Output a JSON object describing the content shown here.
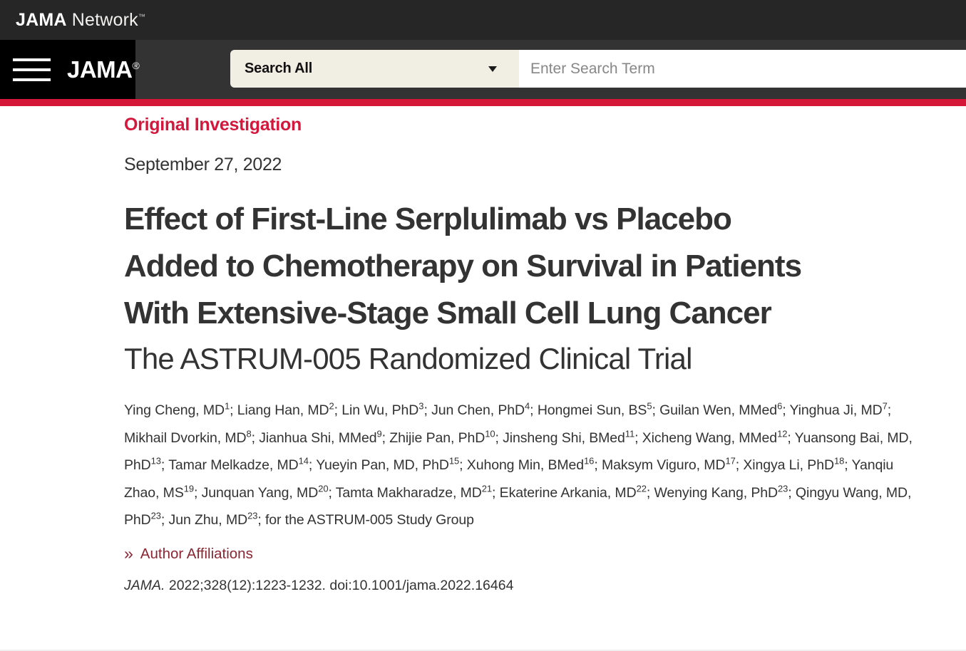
{
  "brand": {
    "name_bold": "JAMA",
    "name_regular": "Network",
    "trademark": "™"
  },
  "nav": {
    "journal_name": "JAMA",
    "registered_mark": "®"
  },
  "search": {
    "scope_selected": "Search All",
    "placeholder": "Enter Search Term"
  },
  "colors": {
    "topbar_bg": "#262626",
    "navbar_bg": "#333333",
    "journal_box_bg": "#000000",
    "scope_bg": "#f1eee3",
    "accent_red": "#d41737",
    "category_red": "#d4173c",
    "affiliations_maroon": "#8c2633",
    "text": "#333333"
  },
  "article": {
    "category": "Original Investigation",
    "date": "September 27, 2022",
    "title_lines": [
      "Effect of First-Line Serplulimab vs Placebo",
      "Added to Chemotherapy on Survival in Patients",
      "With Extensive-Stage Small Cell Lung Cancer"
    ],
    "subtitle": "The ASTRUM-005 Randomized Clinical Trial",
    "authors": [
      {
        "name": "Ying Cheng, MD",
        "sup": "1"
      },
      {
        "name": "Liang Han, MD",
        "sup": "2"
      },
      {
        "name": "Lin Wu, PhD",
        "sup": "3"
      },
      {
        "name": "Jun Chen, PhD",
        "sup": "4"
      },
      {
        "name": "Hongmei Sun, BS",
        "sup": "5"
      },
      {
        "name": "Guilan Wen, MMed",
        "sup": "6"
      },
      {
        "name": "Yinghua Ji, MD",
        "sup": "7"
      },
      {
        "name": "Mikhail Dvorkin, MD",
        "sup": "8"
      },
      {
        "name": "Jianhua Shi, MMed",
        "sup": "9"
      },
      {
        "name": "Zhijie Pan, PhD",
        "sup": "10"
      },
      {
        "name": "Jinsheng Shi, BMed",
        "sup": "11"
      },
      {
        "name": "Xicheng Wang, MMed",
        "sup": "12"
      },
      {
        "name": "Yuansong Bai, MD, PhD",
        "sup": "13"
      },
      {
        "name": "Tamar Melkadze, MD",
        "sup": "14"
      },
      {
        "name": "Yueyin Pan, MD, PhD",
        "sup": "15"
      },
      {
        "name": "Xuhong Min, BMed",
        "sup": "16"
      },
      {
        "name": "Maksym Viguro, MD",
        "sup": "17"
      },
      {
        "name": "Xingya Li, PhD",
        "sup": "18"
      },
      {
        "name": "Yanqiu Zhao, MS",
        "sup": "19"
      },
      {
        "name": "Junquan Yang, MD",
        "sup": "20"
      },
      {
        "name": "Tamta Makharadze, MD",
        "sup": "21"
      },
      {
        "name": "Ekaterine Arkania, MD",
        "sup": "22"
      },
      {
        "name": "Wenying Kang, PhD",
        "sup": "23"
      },
      {
        "name": "Qingyu Wang, MD, PhD",
        "sup": "23"
      },
      {
        "name": "Jun Zhu, MD",
        "sup": "23"
      }
    ],
    "authors_suffix": "for the ASTRUM-005 Study Group",
    "affiliations": {
      "icon": "»",
      "label": "Author Affiliations"
    },
    "citation": {
      "journal": "JAMA.",
      "details": " 2022;328(12):1223-1232. doi:10.1001/jama.2022.16464"
    }
  }
}
